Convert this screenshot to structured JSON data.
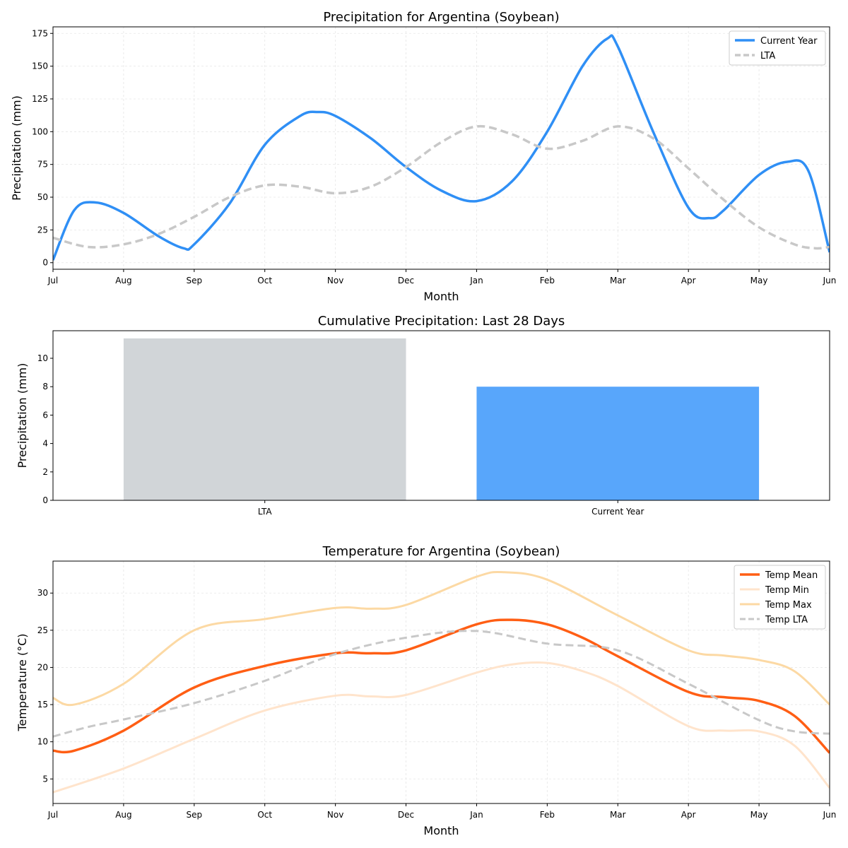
{
  "chart_data": [
    {
      "type": "line",
      "title": "Precipitation for Argentina (Soybean)",
      "xlabel": "Month",
      "ylabel": "Precipitation (mm)",
      "xticks": [
        "Jul",
        "Aug",
        "Sep",
        "Oct",
        "Nov",
        "Dec",
        "Jan",
        "Feb",
        "Mar",
        "Apr",
        "May",
        "Jun"
      ],
      "xlim": [
        0,
        11
      ],
      "ylim": [
        -5,
        180
      ],
      "yticks": [
        0,
        25,
        50,
        75,
        100,
        125,
        150,
        175
      ],
      "grid": true,
      "legend_position": "top-right",
      "series": [
        {
          "name": "Current Year",
          "color": "#2f8ff5",
          "style": "solid",
          "x": [
            0,
            0.3,
            0.6,
            1,
            1.5,
            1.85,
            2,
            2.5,
            3,
            3.5,
            3.75,
            4,
            4.5,
            5,
            5.5,
            6,
            6.5,
            7,
            7.5,
            7.85,
            8,
            8.5,
            9,
            9.3,
            9.5,
            10,
            10.4,
            10.7,
            11
          ],
          "y": [
            2,
            40,
            46,
            38,
            20,
            11,
            14,
            45,
            90,
            112,
            115,
            112,
            95,
            73,
            55,
            47,
            62,
            100,
            150,
            171,
            165,
            100,
            42,
            34,
            40,
            67,
            77,
            70,
            8
          ]
        },
        {
          "name": "LTA",
          "color": "#c8c8c8",
          "style": "dashed",
          "x": [
            0,
            0.5,
            1,
            1.5,
            2,
            2.5,
            3,
            3.5,
            4,
            4.5,
            5,
            5.5,
            6,
            6.5,
            7,
            7.5,
            8,
            8.5,
            9,
            9.5,
            10,
            10.5,
            10.8,
            11
          ],
          "y": [
            19,
            12,
            14,
            22,
            35,
            50,
            59,
            58,
            53,
            58,
            73,
            92,
            104,
            98,
            87,
            93,
            104,
            95,
            72,
            48,
            27,
            14,
            11,
            12
          ]
        }
      ]
    },
    {
      "type": "bar",
      "title": "Cumulative Precipitation: Last 28 Days",
      "xlabel": "",
      "ylabel": "Precipitation (mm)",
      "categories": [
        "LTA",
        "Current Year"
      ],
      "values": [
        11.4,
        8.0
      ],
      "colors": [
        "#d1d5d8",
        "#58a6fb"
      ],
      "ylim": [
        0,
        11.94
      ],
      "yticks": [
        0,
        2,
        4,
        6,
        8,
        10
      ]
    },
    {
      "type": "line",
      "title": "Temperature for Argentina (Soybean)",
      "xlabel": "Month",
      "ylabel": "Temperature (°C)",
      "xticks": [
        "Jul",
        "Aug",
        "Sep",
        "Oct",
        "Nov",
        "Dec",
        "Jan",
        "Feb",
        "Mar",
        "Apr",
        "May",
        "Jun"
      ],
      "xlim": [
        0,
        11
      ],
      "ylim": [
        1.7,
        34.3
      ],
      "yticks": [
        5,
        10,
        15,
        20,
        25,
        30
      ],
      "grid": true,
      "legend_position": "top-right",
      "series": [
        {
          "name": "Temp Mean",
          "color": "#ff5e14",
          "style": "solid",
          "width": 3.5,
          "x": [
            0,
            0.3,
            1,
            2,
            3,
            4,
            4.5,
            5,
            6,
            6.5,
            7,
            7.5,
            8,
            9,
            9.5,
            10,
            10.5,
            11
          ],
          "y": [
            8.8,
            8.8,
            11.5,
            17.3,
            20.2,
            21.9,
            21.9,
            22.3,
            25.8,
            26.4,
            25.8,
            24,
            21.5,
            16.7,
            16,
            15.5,
            13.5,
            8.5
          ]
        },
        {
          "name": "Temp Min",
          "color": "#ffe4cc",
          "style": "solid",
          "width": 3,
          "x": [
            0,
            1,
            2,
            3,
            4,
            4.5,
            5,
            6,
            6.5,
            7,
            7.5,
            8,
            9,
            9.5,
            10,
            10.5,
            11
          ],
          "y": [
            3.2,
            6.4,
            10.4,
            14.2,
            16.2,
            16.1,
            16.3,
            19.3,
            20.4,
            20.6,
            19.5,
            17.5,
            12.1,
            11.5,
            11.4,
            9.5,
            3.8
          ]
        },
        {
          "name": "Temp Max",
          "color": "#fcd9a4",
          "style": "solid",
          "width": 3,
          "x": [
            0,
            0.3,
            1,
            2,
            3,
            4,
            4.5,
            5,
            6,
            6.4,
            7,
            8,
            9,
            9.5,
            10,
            10.5,
            11
          ],
          "y": [
            15.9,
            15,
            17.8,
            25,
            26.5,
            28,
            27.9,
            28.4,
            32.2,
            32.8,
            31.8,
            27,
            22.3,
            21.6,
            21,
            19.5,
            15
          ]
        },
        {
          "name": "Temp LTA",
          "color": "#c8c8c8",
          "style": "dashed",
          "width": 3,
          "x": [
            0,
            0.5,
            1,
            2,
            3,
            4,
            5,
            6,
            7,
            8,
            9,
            10,
            10.5,
            11
          ],
          "y": [
            10.7,
            12,
            13,
            15.2,
            18.2,
            21.8,
            24,
            24.9,
            23.2,
            22.3,
            17.8,
            12.9,
            11.4,
            11.1
          ]
        }
      ]
    }
  ]
}
